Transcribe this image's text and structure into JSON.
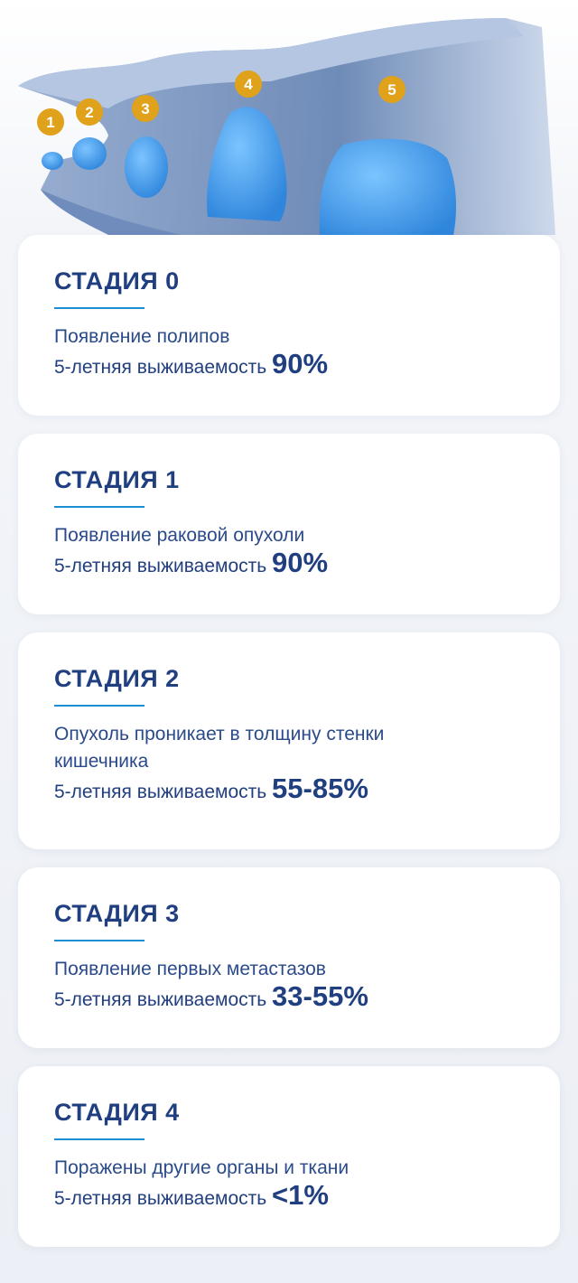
{
  "hero": {
    "markers": [
      "1",
      "2",
      "3",
      "4",
      "5"
    ],
    "marker_color": "#e0a11b",
    "polyp_color": "#3d9ae8"
  },
  "survival_label": "5-летняя выживаемость",
  "stages": [
    {
      "title": "СТАДИЯ 0",
      "description": "Появление полипов",
      "survival": "90%"
    },
    {
      "title": "СТАДИЯ 1",
      "description": "Появление раковой опухоли",
      "survival": "90%"
    },
    {
      "title": "СТАДИЯ 2",
      "description": "Опухоль проникает в толщину стенки кишечника",
      "survival": "55-85%"
    },
    {
      "title": "СТАДИЯ 3",
      "description": "Появление первых метастазов",
      "survival": "33-55%"
    },
    {
      "title": "СТАДИЯ 4",
      "description": "Поражены другие органы и ткани",
      "survival": "<1%"
    }
  ],
  "colors": {
    "title": "#203f80",
    "accent_line": "#1c8fd4",
    "card_bg": "#ffffff"
  }
}
